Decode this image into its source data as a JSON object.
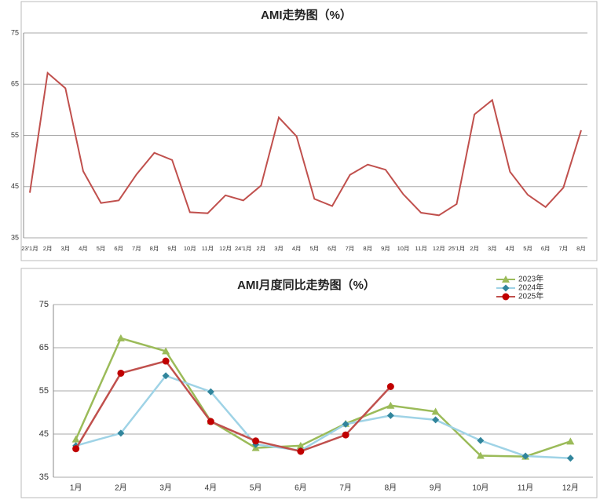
{
  "chart_data": [
    {
      "type": "line",
      "title": "AMI走势图（%）",
      "categories": [
        "23'1月",
        "2月",
        "3月",
        "4月",
        "5月",
        "6月",
        "7月",
        "8月",
        "9月",
        "10月",
        "11月",
        "12月",
        "24'1月",
        "2月",
        "3月",
        "4月",
        "5月",
        "6月",
        "7月",
        "8月",
        "9月",
        "10月",
        "11月",
        "12月",
        "25'1月",
        "2月",
        "3月",
        "4月",
        "5月",
        "6月",
        "7月",
        "8月"
      ],
      "series": [
        {
          "name": null,
          "color": "#c0504d",
          "values": [
            43.8,
            67.2,
            64.2,
            48,
            41.8,
            42.3,
            47.4,
            51.6,
            50.2,
            40,
            39.8,
            43.3,
            42.3,
            45.2,
            58.5,
            54.8,
            42.6,
            41.2,
            47.3,
            49.3,
            48.3,
            43.5,
            39.9,
            39.4,
            41.6,
            59.1,
            61.9,
            47.9,
            43.4,
            41,
            44.8,
            56
          ]
        }
      ],
      "ylim": [
        35,
        75
      ],
      "yticks": [
        35,
        45,
        55,
        65,
        75
      ],
      "grid": true
    },
    {
      "type": "line",
      "title": "AMI月度同比走势图（%）",
      "categories": [
        "1月",
        "2月",
        "3月",
        "4月",
        "5月",
        "6月",
        "7月",
        "8月",
        "9月",
        "10月",
        "11月",
        "12月"
      ],
      "series": [
        {
          "name": "2023年",
          "color": "#9bbb59",
          "marker": "triangle",
          "values": [
            43.8,
            67.2,
            64.2,
            48,
            41.8,
            42.3,
            47.4,
            51.6,
            50.2,
            40,
            39.8,
            43.3
          ]
        },
        {
          "name": "2024年",
          "color": "#9fd3e6",
          "marker_color": "#31859c",
          "marker": "diamond",
          "values": [
            42.3,
            45.2,
            58.5,
            54.8,
            42.6,
            41.2,
            47.3,
            49.3,
            48.3,
            43.5,
            39.9,
            39.4
          ]
        },
        {
          "name": "2025年",
          "color": "#c0504d",
          "marker_color": "#c00000",
          "marker": "circle",
          "values": [
            41.6,
            59.1,
            61.9,
            47.9,
            43.4,
            41,
            44.8,
            56,
            null,
            null,
            null,
            null
          ]
        }
      ],
      "ylim": [
        35,
        75
      ],
      "yticks": [
        35,
        45,
        55,
        65,
        75
      ],
      "grid": true,
      "legend": "top-right"
    }
  ]
}
